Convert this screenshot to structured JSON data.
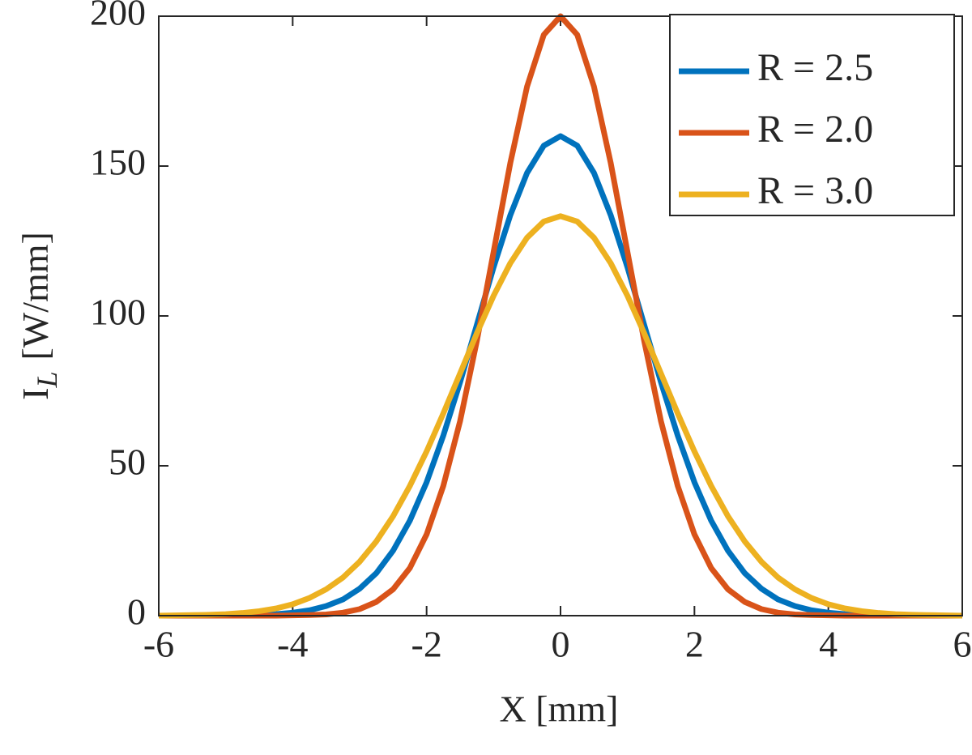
{
  "chart_data": {
    "type": "line",
    "xlabel": "X [mm]",
    "ylabel": "I",
    "ylabel_sub": "L",
    "ylabel_unit": "[W/mm]",
    "x": [
      -6,
      -5.75,
      -5.5,
      -5.25,
      -5,
      -4.75,
      -4.5,
      -4.25,
      -4,
      -3.75,
      -3.5,
      -3.25,
      -3,
      -2.75,
      -2.5,
      -2.25,
      -2,
      -1.75,
      -1.5,
      -1.25,
      -1,
      -0.75,
      -0.5,
      -0.25,
      0,
      0.25,
      0.5,
      0.75,
      1,
      1.25,
      1.5,
      1.75,
      2,
      2.25,
      2.5,
      2.75,
      3,
      3.25,
      3.5,
      3.75,
      4,
      4.25,
      4.5,
      4.75,
      5,
      5.25,
      5.5,
      5.75,
      6
    ],
    "series": [
      {
        "name": "R = 2.5",
        "color": "#0072bd",
        "values": [
          0,
          0,
          0,
          0,
          0.1,
          0.1,
          0.2,
          0.5,
          1.0,
          1.8,
          3.2,
          5.4,
          9.0,
          14.2,
          21.7,
          31.7,
          44.5,
          60.1,
          77.9,
          97.0,
          116.2,
          133.6,
          147.7,
          156.8,
          160,
          156.8,
          147.7,
          133.6,
          116.2,
          97.0,
          77.9,
          60.1,
          44.5,
          31.7,
          21.7,
          14.2,
          9.0,
          5.4,
          3.2,
          1.8,
          1.0,
          0.5,
          0.2,
          0.1,
          0.1,
          0,
          0,
          0,
          0
        ]
      },
      {
        "name": "R = 2.0",
        "color": "#d95319",
        "values": [
          0,
          0,
          0,
          0,
          0,
          0,
          0,
          0,
          0.1,
          0.2,
          0.4,
          1.0,
          2.2,
          4.6,
          8.8,
          15.9,
          27.1,
          43.3,
          64.9,
          91.6,
          121.3,
          151.0,
          176.5,
          193.8,
          200,
          193.8,
          176.5,
          151.0,
          121.3,
          91.6,
          64.9,
          43.3,
          27.1,
          15.9,
          8.8,
          4.6,
          2.2,
          1.0,
          0.4,
          0.2,
          0.1,
          0,
          0,
          0,
          0,
          0,
          0,
          0,
          0
        ]
      },
      {
        "name": "R = 3.0",
        "color": "#edb120",
        "values": [
          0.0,
          0.1,
          0.2,
          0.3,
          0.5,
          0.9,
          1.5,
          2.4,
          3.8,
          5.9,
          8.8,
          12.7,
          18.0,
          24.8,
          33.2,
          43.3,
          54.8,
          67.5,
          80.8,
          94.2,
          106.7,
          117.6,
          126.1,
          131.5,
          133.3,
          131.5,
          126.1,
          117.6,
          106.7,
          94.2,
          80.8,
          67.5,
          54.8,
          43.3,
          33.2,
          24.8,
          18.0,
          12.7,
          8.8,
          5.9,
          3.8,
          2.4,
          1.5,
          0.9,
          0.5,
          0.3,
          0.2,
          0.1,
          0.0
        ]
      }
    ],
    "xlim": [
      -6,
      6
    ],
    "ylim": [
      0,
      200
    ],
    "xticks": [
      -6,
      -4,
      -2,
      0,
      2,
      4,
      6
    ],
    "yticks": [
      0,
      50,
      100,
      150,
      200
    ],
    "grid": false,
    "legend": "top-right"
  }
}
